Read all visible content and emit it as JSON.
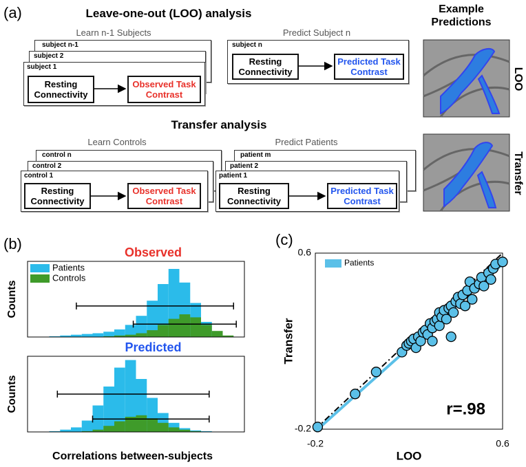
{
  "panel_labels": [
    "(a)",
    "(b)",
    "(c)"
  ],
  "diagram": {
    "loo": {
      "title": "Leave-one-out (LOO) analysis",
      "learn_label": "Learn n-1 Subjects",
      "predict_label": "Predict Subject n",
      "learn_stack": [
        "subject n-1",
        "subject 2",
        "subject 1"
      ],
      "predict_stack": [
        "subject n"
      ],
      "learn_source": "Resting Connectivity",
      "learn_target": "Observed Task Contrast",
      "predict_source": "Resting Connectivity",
      "predict_target": "Predicted Task Contrast"
    },
    "transfer": {
      "title": "Transfer analysis",
      "learn_label": "Learn Controls",
      "predict_label": "Predict Patients",
      "learn_stack": [
        "control n",
        "control 2",
        "control 1"
      ],
      "predict_stack": [
        "patient m",
        "patient 2",
        "patient 1"
      ],
      "learn_source": "Resting Connectivity",
      "learn_target": "Observed Task Contrast",
      "predict_source": "Resting Connectivity",
      "predict_target": "Predicted Task Contrast"
    },
    "examples": {
      "title": "Example Predictions",
      "rows": [
        "LOO",
        "Transfer"
      ]
    }
  },
  "chart_data": [
    {
      "type": "histogram",
      "title": "Observed",
      "title_color": "#e8312a",
      "ylabel": "Counts",
      "bins": [
        0,
        0.04,
        0.08,
        0.12,
        0.16,
        0.2,
        0.24,
        0.28,
        0.32,
        0.36,
        0.4,
        0.44,
        0.48,
        0.52,
        0.56,
        0.6,
        0.64,
        0.68,
        0.72,
        0.76,
        0.8
      ],
      "xlim": [
        0,
        0.8
      ],
      "ylim": [
        0,
        100
      ],
      "legend": "upper left",
      "series": [
        {
          "name": "Patients",
          "color": "#2bbbea",
          "values": [
            0,
            0,
            1,
            2,
            3,
            4,
            5,
            7,
            10,
            16,
            28,
            48,
            70,
            90,
            72,
            45,
            20,
            6,
            1,
            0
          ],
          "whisker": [
            0.18,
            0.76
          ]
        },
        {
          "name": "Controls",
          "color": "#3f9b2a",
          "values": [
            0,
            0,
            0,
            0,
            0,
            0,
            0,
            1,
            2,
            3,
            5,
            9,
            16,
            24,
            30,
            26,
            16,
            8,
            2,
            0
          ],
          "whisker": [
            0.39,
            0.77
          ]
        }
      ]
    },
    {
      "type": "histogram",
      "title": "Predicted",
      "title_color": "#2255ee",
      "ylabel": "Counts",
      "xlabel": "Correlations between-subjects",
      "bins": [
        0,
        0.04,
        0.08,
        0.12,
        0.16,
        0.2,
        0.24,
        0.28,
        0.32,
        0.36,
        0.4,
        0.44,
        0.48,
        0.52,
        0.56,
        0.6,
        0.64,
        0.68,
        0.72,
        0.76,
        0.8
      ],
      "xlim": [
        0,
        0.8
      ],
      "ylim": [
        0,
        100
      ],
      "series": [
        {
          "color": "#2bbbea",
          "values": [
            0,
            0,
            1,
            3,
            6,
            15,
            35,
            60,
            85,
            95,
            70,
            45,
            25,
            12,
            5,
            2,
            1,
            0,
            0,
            0
          ],
          "whisker": [
            0.11,
            0.67
          ]
        },
        {
          "color": "#3f9b2a",
          "values": [
            0,
            0,
            0,
            0,
            0,
            1,
            3,
            8,
            14,
            20,
            22,
            18,
            12,
            6,
            3,
            1,
            0,
            0,
            0,
            0
          ],
          "whisker": [
            0.24,
            0.67
          ]
        }
      ]
    },
    {
      "type": "scatter",
      "xlabel": "LOO",
      "ylabel": "Transfer",
      "annotation": "r=.98",
      "xlim": [
        -0.2,
        0.6
      ],
      "ylim": [
        -0.2,
        0.6
      ],
      "xticks": [
        -0.2,
        0.6
      ],
      "yticks": [
        -0.2,
        0.6
      ],
      "identity_line": true,
      "legend": "upper left",
      "fit": {
        "x": [
          -0.2,
          0.6
        ],
        "values": [
          -0.21,
          0.55
        ]
      },
      "series": [
        {
          "name": "Patients",
          "color": "#5bc0e8",
          "x": [
            -0.19,
            -0.03,
            0.06,
            0.17,
            0.19,
            0.2,
            0.21,
            0.22,
            0.23,
            0.24,
            0.25,
            0.26,
            0.27,
            0.28,
            0.29,
            0.3,
            0.3,
            0.31,
            0.32,
            0.33,
            0.33,
            0.34,
            0.35,
            0.36,
            0.37,
            0.38,
            0.38,
            0.39,
            0.4,
            0.41,
            0.42,
            0.43,
            0.44,
            0.45,
            0.46,
            0.47,
            0.48,
            0.5,
            0.51,
            0.52,
            0.54,
            0.55,
            0.56,
            0.57,
            0.6
          ],
          "values": [
            -0.19,
            -0.04,
            0.06,
            0.15,
            0.18,
            0.19,
            0.2,
            0.21,
            0.17,
            0.22,
            0.2,
            0.24,
            0.25,
            0.23,
            0.28,
            0.26,
            0.2,
            0.29,
            0.3,
            0.27,
            0.33,
            0.31,
            0.34,
            0.3,
            0.35,
            0.36,
            0.22,
            0.33,
            0.38,
            0.4,
            0.37,
            0.41,
            0.36,
            0.43,
            0.47,
            0.39,
            0.44,
            0.46,
            0.49,
            0.45,
            0.51,
            0.48,
            0.53,
            0.55,
            0.56
          ]
        }
      ]
    }
  ]
}
